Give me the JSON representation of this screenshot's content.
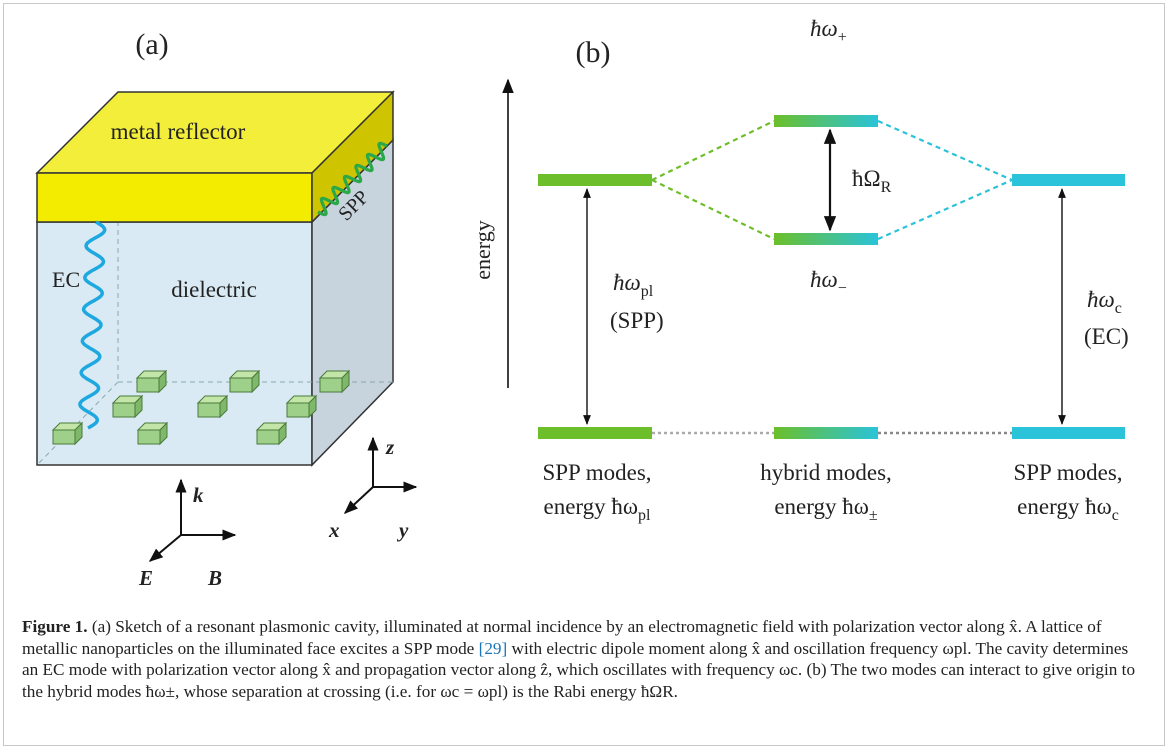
{
  "panel_a": {
    "label": "(a)",
    "metal_label": "metal reflector",
    "spp_label": "SPP",
    "ec_label": "EC",
    "dielectric_label": "dielectric",
    "axes": {
      "z": "z",
      "x": "x",
      "y": "y"
    },
    "field": {
      "k": "k",
      "E": "E",
      "B": "B"
    }
  },
  "panel_b": {
    "label": "(b)",
    "energy_label": "energy",
    "upper": "ħω",
    "upper_sub": "+",
    "lower": "ħω",
    "lower_sub": "−",
    "rabi": "ħΩ",
    "rabi_sub": "R",
    "spp_energy": "ħω",
    "spp_energy_sub": "pl",
    "spp_paren": "(SPP)",
    "ec_energy": "ħω",
    "ec_energy_sub": "c",
    "ec_paren": "(EC)",
    "bottom": {
      "left_line1": "SPP modes,",
      "left_line2": "energy ħω",
      "left_sub": "pl",
      "mid_line1": "hybrid modes,",
      "mid_line2": "energy ħω",
      "mid_sub": "±",
      "right_line1": "SPP modes,",
      "right_line2": "energy ħω",
      "right_sub": "c"
    },
    "colors": {
      "green": "#6cbf2a",
      "cyan": "#2ac3d9"
    }
  },
  "caption": {
    "label": "Figure 1.",
    "text_1": " (a) Sketch of a resonant plasmonic cavity, illuminated at normal incidence by an electromagnetic field with polarization vector along x̂. A lattice of metallic nanoparticles on the illuminated face excites a SPP mode ",
    "ref": "[29]",
    "text_2": " with electric dipole moment along x̂ and oscillation frequency ωpl. The cavity determines an EC mode with polarization vector along x̂ and propagation vector along ẑ, which oscillates with frequency ωc. (b) The two modes can interact to give origin to the hybrid modes ħω±, whose separation at crossing (i.e. for ωc = ωpl) is the Rabi energy ħΩR."
  }
}
